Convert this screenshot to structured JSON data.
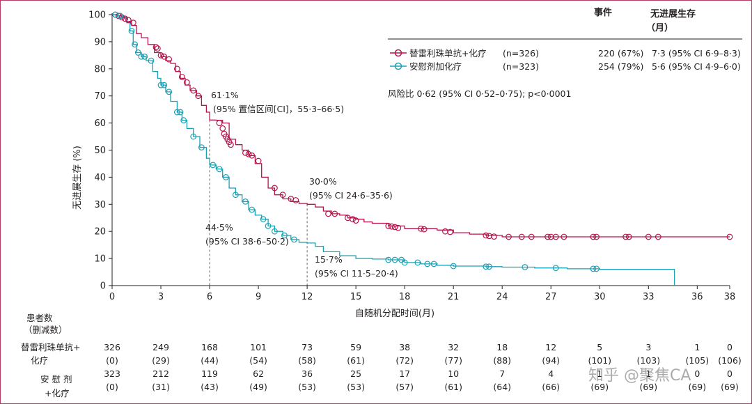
{
  "chart_data": {
    "type": "line",
    "title": "",
    "xlabel": "自随机分配时间(月)",
    "ylabel": "无进展生存 (%)",
    "xlim": [
      0,
      38
    ],
    "ylim": [
      0,
      100
    ],
    "x_ticks": [
      0,
      3,
      6,
      9,
      12,
      15,
      18,
      21,
      24,
      27,
      30,
      33,
      36,
      38
    ],
    "y_ticks": [
      0,
      10,
      20,
      30,
      40,
      50,
      60,
      70,
      80,
      90,
      100
    ],
    "colors": {
      "arm1": "#b5144d",
      "arm2": "#1aa1b5",
      "text": "#231f20",
      "axis": "#231f20"
    },
    "legend": {
      "header_events": "事件",
      "header_pfs_line1": "无进展生存",
      "header_pfs_line2": "（月）",
      "items": [
        {
          "label": "替雷利珠单抗+化疗",
          "n": "(n=326)",
          "events": "220 (67%)",
          "median": "7·3 (95% CI 6·9–8·3)"
        },
        {
          "label": "安慰剂加化疗",
          "n": "(n=323)",
          "events": "254 (79%)",
          "median": "5·6 (95% CI 4·9–6·0)"
        }
      ]
    },
    "hazard_ratio": "风险比 0·62 (95% CI 0·52–0·75); p<0·0001",
    "annotations": [
      {
        "line1": "61·1%",
        "line2": "(95% 置信区间[CI]，55·3–66·5)"
      },
      {
        "line1": "44·5%",
        "line2": "(95% CI 38·6–50·2)"
      },
      {
        "line1": "30·0%",
        "line2": "(95% CI 24·6–35·6)"
      },
      {
        "line1": "15·7%",
        "line2": "(95% CI 11·5–20·4)"
      }
    ],
    "reference_lines": [
      {
        "x": 6,
        "y_values": [
          61.1,
          44.5
        ]
      },
      {
        "x": 12,
        "y_values": [
          30.0,
          15.7
        ]
      }
    ],
    "series": [
      {
        "name": "替雷利珠单抗+化疗",
        "x": [
          0,
          0.3,
          0.6,
          0.9,
          1.2,
          1.5,
          1.8,
          2.2,
          2.6,
          3.0,
          3.3,
          3.6,
          3.9,
          4.2,
          4.5,
          4.8,
          5.2,
          5.5,
          5.8,
          6.0,
          6.4,
          6.8,
          7.2,
          7.6,
          8.0,
          8.4,
          8.8,
          9.2,
          9.6,
          10.0,
          10.5,
          11.0,
          11.5,
          12.0,
          12.5,
          13.0,
          13.5,
          14.0,
          14.5,
          15.0,
          15.5,
          16.0,
          17.0,
          18.0,
          19.0,
          20.0,
          21.0,
          22.0,
          23.0,
          24.0,
          27.0,
          30.0,
          33.0,
          36.0,
          38.0
        ],
        "y": [
          100,
          99.5,
          98.8,
          97.5,
          96.0,
          93.0,
          91.5,
          89.0,
          86.0,
          84.5,
          83.0,
          82.0,
          79.0,
          76.5,
          74.0,
          72.0,
          70.0,
          66.5,
          64.0,
          61.1,
          61.0,
          60.0,
          54.0,
          52.0,
          50.0,
          48.0,
          45.0,
          40.0,
          36.0,
          33.5,
          32.0,
          31.0,
          30.3,
          30.0,
          29.0,
          27.5,
          26.5,
          26.0,
          25.0,
          24.5,
          23.5,
          23.0,
          22.0,
          21.0,
          21.0,
          20.5,
          19.5,
          19.0,
          18.5,
          18.0,
          18.0,
          18.0,
          18.0,
          18.0,
          18.0
        ],
        "censor_x": [
          0.2,
          0.4,
          0.6,
          0.8,
          1.0,
          1.3,
          2.7,
          2.8,
          3.0,
          3.2,
          3.5,
          4.0,
          4.3,
          4.6,
          5.0,
          5.3,
          6.6,
          6.8,
          6.9,
          7.0,
          7.1,
          7.2,
          7.3,
          8.2,
          8.4,
          8.6,
          9.0,
          10.0,
          10.5,
          11.0,
          11.3,
          13.3,
          13.7,
          14.5,
          14.8,
          15.0,
          17.0,
          17.2,
          17.4,
          17.6,
          19.0,
          19.2,
          20.5,
          20.8,
          23.0,
          23.2,
          23.5,
          24.4,
          25.2,
          25.8,
          26.8,
          27.0,
          27.3,
          27.8,
          29.6,
          29.8,
          31.6,
          31.8,
          33.0,
          33.6,
          38.0
        ],
        "censor_y": [
          100,
          99.5,
          99.0,
          98.5,
          98.0,
          97.0,
          88.0,
          87.5,
          85.0,
          84.5,
          83.5,
          80.0,
          77.0,
          75.0,
          72.0,
          70.0,
          60.0,
          58.0,
          56.0,
          55.0,
          54.0,
          53.0,
          52.0,
          49.0,
          48.5,
          48.0,
          46.0,
          36.0,
          33.5,
          32.0,
          31.5,
          26.5,
          26.5,
          25.0,
          24.5,
          24.0,
          22.0,
          21.8,
          21.6,
          21.3,
          21.0,
          20.8,
          20.0,
          19.8,
          18.5,
          18.3,
          18.1,
          18.0,
          18.0,
          18.0,
          18.0,
          18.0,
          18.0,
          18.0,
          18.0,
          18.0,
          18.0,
          18.0,
          18.0,
          18.0,
          18.0
        ]
      },
      {
        "name": "安慰剂加化疗",
        "x": [
          0,
          0.3,
          0.6,
          0.9,
          1.1,
          1.3,
          1.5,
          1.8,
          2.1,
          2.5,
          2.8,
          3.0,
          3.3,
          3.6,
          4.0,
          4.3,
          4.6,
          5.0,
          5.4,
          5.8,
          6.0,
          6.4,
          6.8,
          7.2,
          7.6,
          8.0,
          8.4,
          8.8,
          9.2,
          9.6,
          10.0,
          10.5,
          11.0,
          11.5,
          12.0,
          12.5,
          13.0,
          14.0,
          15.0,
          16.0,
          17.0,
          18.0,
          19.0,
          20.0,
          21.0,
          23.0,
          24.0,
          26.0,
          28.0,
          30.0,
          34.6
        ],
        "y": [
          100,
          99.5,
          99.0,
          97.0,
          94.0,
          89.0,
          86.0,
          84.5,
          83.0,
          79.0,
          76.5,
          74.0,
          71.5,
          68.0,
          64.0,
          61.0,
          58.0,
          55.0,
          51.0,
          47.0,
          44.5,
          43.0,
          40.0,
          36.0,
          33.5,
          31.0,
          28.0,
          26.0,
          24.5,
          22.0,
          20.0,
          18.5,
          17.0,
          16.0,
          15.7,
          14.5,
          12.5,
          11.0,
          10.0,
          9.8,
          9.5,
          8.5,
          8.0,
          7.5,
          7.2,
          7.0,
          6.8,
          6.5,
          6.2,
          6.0,
          0
        ]
      }
    ]
  },
  "risk_table": {
    "header_line1": "患者数",
    "header_line2": "（删减数）",
    "times": [
      0,
      3,
      6,
      9,
      12,
      15,
      18,
      21,
      24,
      27,
      30,
      33,
      36,
      38
    ],
    "rows": [
      {
        "label_line1": "替雷利珠单抗+",
        "label_line2": "化疗",
        "at_risk": [
          "326",
          "249",
          "168",
          "101",
          "73",
          "59",
          "38",
          "32",
          "18",
          "12",
          "5",
          "3",
          "1",
          "0"
        ],
        "censored": [
          "(0)",
          "(29)",
          "(44)",
          "(54)",
          "(58)",
          "(61)",
          "(72)",
          "(77)",
          "(88)",
          "(94)",
          "(101)",
          "(103)",
          "(105)",
          "(106)"
        ]
      },
      {
        "label_line1": "安 慰 剂",
        "label_line2": "+化疗",
        "at_risk": [
          "323",
          "212",
          "119",
          "62",
          "36",
          "25",
          "17",
          "10",
          "7",
          "4",
          "1",
          "1",
          "0",
          "0"
        ],
        "censored": [
          "(0)",
          "(31)",
          "(43)",
          "(49)",
          "(53)",
          "(53)",
          "(57)",
          "(61)",
          "(64)",
          "(66)",
          "(69)",
          "(69)",
          "(69)",
          "(69)"
        ]
      }
    ]
  },
  "watermark": "知乎 @聚焦CA"
}
